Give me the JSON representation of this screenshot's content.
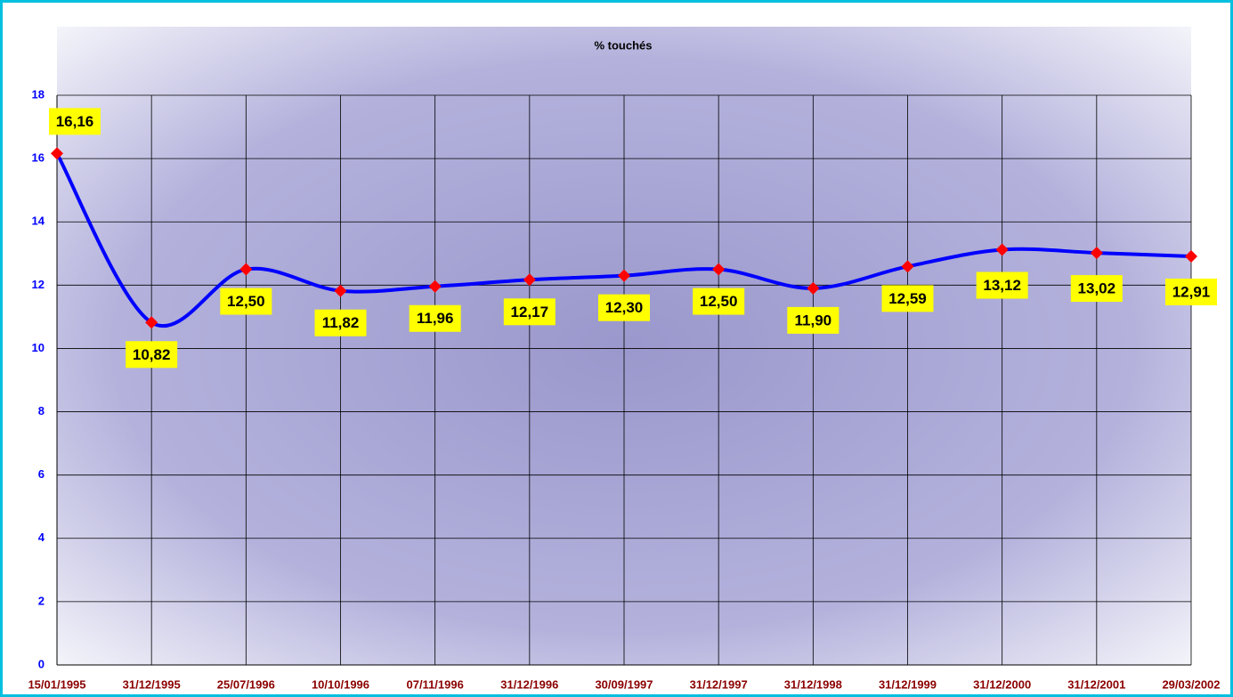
{
  "chart_data": {
    "type": "line",
    "title": "% touchés",
    "categories": [
      "15/01/1995",
      "31/12/1995",
      "25/07/1996",
      "10/10/1996",
      "07/11/1996",
      "31/12/1996",
      "30/09/1997",
      "31/12/1997",
      "31/12/1998",
      "31/12/1999",
      "31/12/2000",
      "31/12/2001",
      "29/03/2002"
    ],
    "series": [
      {
        "name": "% touchés",
        "color": "#0000ff",
        "values": [
          16.16,
          10.82,
          12.5,
          11.82,
          11.96,
          12.17,
          12.3,
          12.5,
          11.9,
          12.59,
          13.12,
          13.02,
          12.91
        ],
        "value_labels": [
          "16,16",
          "10,82",
          "12,50",
          "11,82",
          "11,96",
          "12,17",
          "12,30",
          "12,50",
          "11,90",
          "12,59",
          "13,12",
          "13,02",
          "12,91"
        ]
      }
    ],
    "marker_color": "#ff0000",
    "ylim": [
      0,
      18
    ],
    "yticks": [
      0,
      2,
      4,
      6,
      8,
      10,
      12,
      14,
      16,
      18
    ],
    "grid": true
  }
}
